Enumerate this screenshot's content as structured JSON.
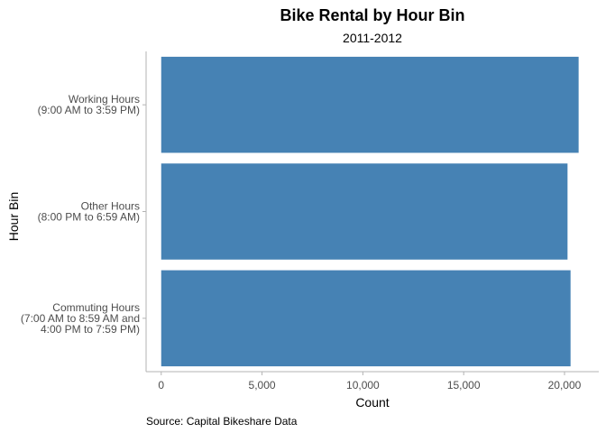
{
  "chart_data": {
    "type": "bar",
    "orientation": "horizontal",
    "title": "Bike Rental by Hour Bin",
    "subtitle": "2011-2012",
    "xlabel": "Count",
    "ylabel": "Hour Bin",
    "caption": "Source: Capital Bikeshare Data",
    "categories": [
      {
        "lines": [
          "Commuting Hours",
          "(7:00 AM to 8:59 AM and",
          "4:00 PM to 7:59 PM)"
        ]
      },
      {
        "lines": [
          "Other Hours",
          "(8:00 PM to 6:59 AM)"
        ]
      },
      {
        "lines": [
          "Working Hours",
          "(9:00 AM to 3:59 PM)"
        ]
      }
    ],
    "values": [
      20300,
      20150,
      20700
    ],
    "bar_color": "#4682b4",
    "xlim": [
      -750,
      21700
    ],
    "xticks": [
      0,
      5000,
      10000,
      15000,
      20000
    ],
    "xtick_labels": [
      "0",
      "5,000",
      "10,000",
      "15,000",
      "20,000"
    ],
    "grid": false
  }
}
